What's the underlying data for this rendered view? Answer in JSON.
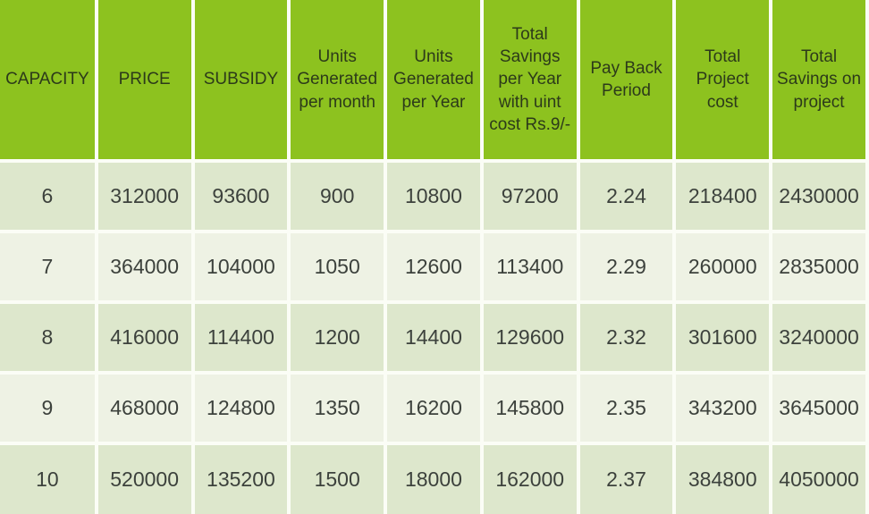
{
  "chart_data": {
    "type": "table",
    "title": "Solar capacity pricing and savings table",
    "headers": [
      "CAPACITY",
      "PRICE",
      "SUBSIDY",
      "Units\nGenerated\nper month",
      "Units\nGenerated\nper Year",
      "Total\nSavings\nper Year\nwith uint\ncost Rs.9/-",
      "Pay Back\nPeriod",
      "Total\nProject\ncost",
      "Total\nSavings on\nproject"
    ],
    "rows": [
      [
        "6",
        "312000",
        "93600",
        "900",
        "10800",
        "97200",
        "2.24",
        "218400",
        "2430000"
      ],
      [
        "7",
        "364000",
        "104000",
        "1050",
        "12600",
        "113400",
        "2.29",
        "260000",
        "2835000"
      ],
      [
        "8",
        "416000",
        "114400",
        "1200",
        "14400",
        "129600",
        "2.32",
        "301600",
        "3240000"
      ],
      [
        "9",
        "468000",
        "124800",
        "1350",
        "16200",
        "145800",
        "2.35",
        "343200",
        "3645000"
      ],
      [
        "10",
        "520000",
        "135200",
        "1500",
        "18000",
        "162000",
        "2.37",
        "384800",
        "4050000"
      ]
    ]
  },
  "colors": {
    "header_bg": "#8dc21f",
    "row_odd_bg": "#dde7cc",
    "row_even_bg": "#eef2e4",
    "header_text": "#2c3a1a",
    "body_text": "#3c413c",
    "grid_line": "#fbfdf6"
  }
}
